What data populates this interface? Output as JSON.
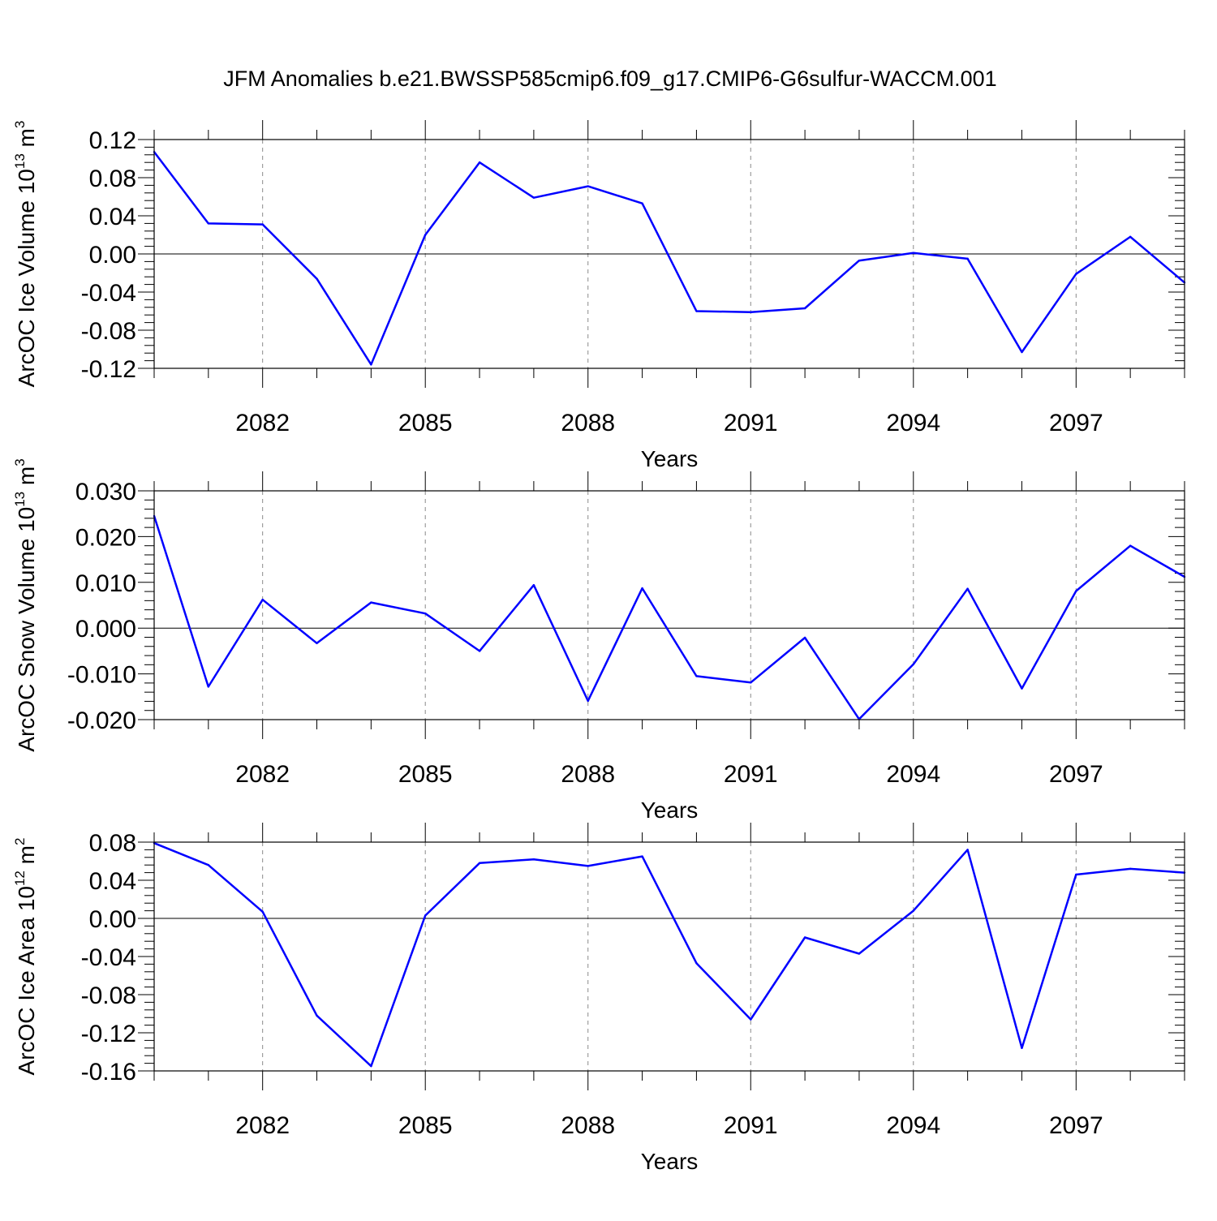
{
  "title": "JFM Anomalies b.e21.BWSSP585cmip6.f09_g17.CMIP6-G6sulfur-WACCM.001",
  "chart_data": [
    {
      "type": "line",
      "ylabel": {
        "main": "ArcOC Ice Volume 10",
        "sup": "13",
        "tail": " m",
        "sup2": "3"
      },
      "xlabel": "Years",
      "xlim": [
        2080,
        2099
      ],
      "ylim": [
        -0.12,
        0.12
      ],
      "yticks": [
        0.12,
        0.08,
        0.04,
        0.0,
        -0.04,
        -0.08,
        -0.12
      ],
      "ytick_labels": [
        "0.12",
        "0.08",
        "0.04",
        "0.00",
        "-0.04",
        "-0.08",
        "-0.12"
      ],
      "xticks": [
        2082,
        2085,
        2088,
        2091,
        2094,
        2097
      ],
      "xtick_labels": [
        "2082",
        "2085",
        "2088",
        "2091",
        "2094",
        "2097"
      ],
      "grid": "dashed vertical at labeled years",
      "color": "#0000ff",
      "x": [
        2080,
        2081,
        2082,
        2083,
        2084,
        2085,
        2086,
        2087,
        2088,
        2089,
        2090,
        2091,
        2092,
        2093,
        2094,
        2095,
        2096,
        2097,
        2098,
        2099
      ],
      "y": [
        0.107,
        0.032,
        0.031,
        -0.026,
        -0.116,
        0.02,
        0.096,
        0.059,
        0.071,
        0.053,
        -0.06,
        -0.061,
        -0.057,
        -0.007,
        0.001,
        -0.005,
        -0.103,
        -0.021,
        0.018,
        -0.03
      ]
    },
    {
      "type": "line",
      "ylabel": {
        "main": "ArcOC Snow Volume 10",
        "sup": "13",
        "tail": " m",
        "sup2": "3"
      },
      "xlabel": "Years",
      "xlim": [
        2080,
        2099
      ],
      "ylim": [
        -0.02,
        0.03
      ],
      "yticks": [
        0.03,
        0.02,
        0.01,
        0.0,
        -0.01,
        -0.02
      ],
      "ytick_labels": [
        "0.030",
        "0.020",
        "0.010",
        "0.000",
        "-0.010",
        "-0.020"
      ],
      "xticks": [
        2082,
        2085,
        2088,
        2091,
        2094,
        2097
      ],
      "xtick_labels": [
        "2082",
        "2085",
        "2088",
        "2091",
        "2094",
        "2097"
      ],
      "grid": "dashed vertical at labeled years",
      "color": "#0000ff",
      "x": [
        2080,
        2081,
        2082,
        2083,
        2084,
        2085,
        2086,
        2087,
        2088,
        2089,
        2090,
        2091,
        2092,
        2093,
        2094,
        2095,
        2096,
        2097,
        2098,
        2099
      ],
      "y": [
        0.0245,
        -0.0128,
        0.0062,
        -0.0033,
        0.0056,
        0.0032,
        -0.005,
        0.0094,
        -0.0159,
        0.0087,
        -0.0105,
        -0.0119,
        -0.0021,
        -0.0199,
        -0.0079,
        0.0086,
        -0.0132,
        0.0081,
        0.018,
        0.0112
      ]
    },
    {
      "type": "line",
      "ylabel": {
        "main": "ArcOC Ice Area 10",
        "sup": "12",
        "tail": " m",
        "sup2": "2"
      },
      "xlabel": "Years",
      "xlim": [
        2080,
        2099
      ],
      "ylim": [
        -0.16,
        0.08
      ],
      "yticks": [
        0.08,
        0.04,
        0.0,
        -0.04,
        -0.08,
        -0.12,
        -0.16
      ],
      "ytick_labels": [
        "0.08",
        "0.04",
        "0.00",
        "-0.04",
        "-0.08",
        "-0.12",
        "-0.16"
      ],
      "xticks": [
        2082,
        2085,
        2088,
        2091,
        2094,
        2097
      ],
      "xtick_labels": [
        "2082",
        "2085",
        "2088",
        "2091",
        "2094",
        "2097"
      ],
      "grid": "dashed vertical at labeled years",
      "color": "#0000ff",
      "x": [
        2080,
        2081,
        2082,
        2083,
        2084,
        2085,
        2086,
        2087,
        2088,
        2089,
        2090,
        2091,
        2092,
        2093,
        2094,
        2095,
        2096,
        2097,
        2098,
        2099
      ],
      "y": [
        0.079,
        0.056,
        0.007,
        -0.102,
        -0.155,
        0.003,
        0.058,
        0.062,
        0.055,
        0.065,
        -0.047,
        -0.106,
        -0.02,
        -0.037,
        0.008,
        0.072,
        -0.136,
        0.046,
        0.052,
        0.048
      ]
    }
  ]
}
